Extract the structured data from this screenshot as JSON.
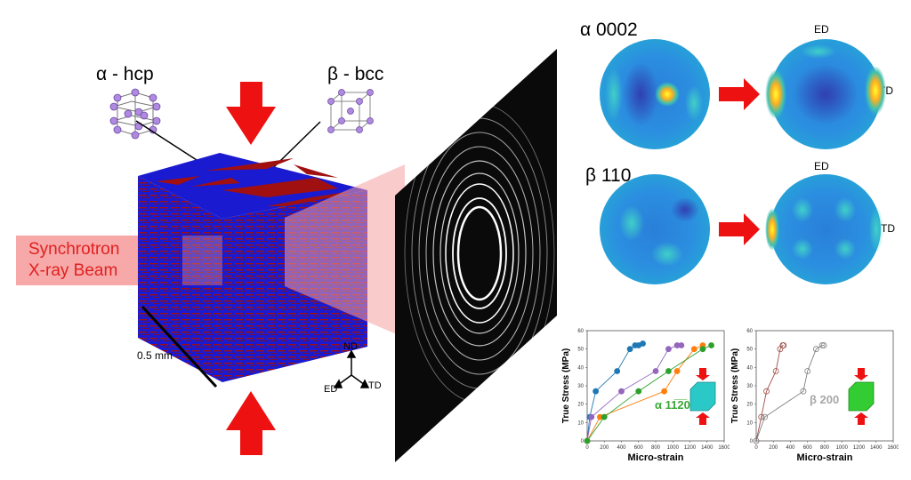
{
  "labels": {
    "alpha_hcp": "α - hcp",
    "beta_bcc": "β - bcc",
    "beam_line1": "Synchrotron",
    "beam_line2": "X-ray Beam",
    "scale": "0.5 mm",
    "axis_nd": "ND",
    "axis_ed": "ED",
    "axis_td": "TD"
  },
  "pole_figures": {
    "alpha_title": "α 0002",
    "beta_title": "β 110",
    "ed": "ED",
    "td": "TD"
  },
  "colors": {
    "alpha_phase": "#1a1ad0",
    "beta_phase": "#a01010",
    "arrow": "#ee1111",
    "beam": "#f6a0a0",
    "crystal": "#b08ae0",
    "series": [
      "#1f77b4",
      "#9467bd",
      "#ff7f0e",
      "#2ca02c"
    ],
    "alpha_annotation": "#3aa836",
    "beta_annotation": "#a8a8a8"
  },
  "chart_data": [
    {
      "type": "line",
      "xlabel": "Micro-strain",
      "ylabel": "True Stress (MPa)",
      "xlim": [
        0,
        1600
      ],
      "ylim": [
        0,
        60
      ],
      "xticks": [
        "0",
        "200",
        "400",
        "600",
        "800",
        "1000",
        "1200",
        "1400",
        "1600"
      ],
      "yticks": [
        "0",
        "10",
        "20",
        "30",
        "40",
        "50",
        "60"
      ],
      "annotation": "α 11̅2̅0",
      "series": [
        {
          "color": "#1f77b4",
          "marker": "filled",
          "x": [
            0,
            30,
            100,
            350,
            500,
            560,
            600,
            650
          ],
          "y": [
            0,
            13,
            27,
            38,
            50,
            52,
            52,
            53
          ]
        },
        {
          "color": "#9467bd",
          "marker": "filled",
          "x": [
            0,
            50,
            400,
            800,
            950,
            1050,
            1100
          ],
          "y": [
            0,
            13,
            27,
            38,
            50,
            52,
            52
          ]
        },
        {
          "color": "#ff7f0e",
          "marker": "filled",
          "x": [
            0,
            150,
            900,
            1050,
            1250,
            1350
          ],
          "y": [
            0,
            13,
            27,
            38,
            50,
            52
          ]
        },
        {
          "color": "#2ca02c",
          "marker": "filled",
          "x": [
            0,
            200,
            600,
            950,
            1350,
            1450
          ],
          "y": [
            0,
            13,
            27,
            38,
            50,
            52
          ]
        }
      ]
    },
    {
      "type": "line",
      "xlabel": "Micro-strain",
      "ylabel": "True Stress (MPa)",
      "xlim": [
        0,
        1600
      ],
      "ylim": [
        0,
        60
      ],
      "xticks": [
        "0",
        "200",
        "400",
        "600",
        "800",
        "1000",
        "1200",
        "1400",
        "1600"
      ],
      "yticks": [
        "0",
        "10",
        "20",
        "30",
        "40",
        "50",
        "60"
      ],
      "annotation": "β 200",
      "series": [
        {
          "color": "#a0504a",
          "marker": "open",
          "x": [
            0,
            60,
            120,
            230,
            280,
            310,
            320
          ],
          "y": [
            0,
            13,
            27,
            38,
            50,
            52,
            52
          ]
        },
        {
          "color": "#808080",
          "marker": "open",
          "x": [
            0,
            100,
            550,
            600,
            700,
            770,
            790
          ],
          "y": [
            0,
            13,
            27,
            38,
            50,
            52,
            52
          ]
        }
      ]
    }
  ]
}
